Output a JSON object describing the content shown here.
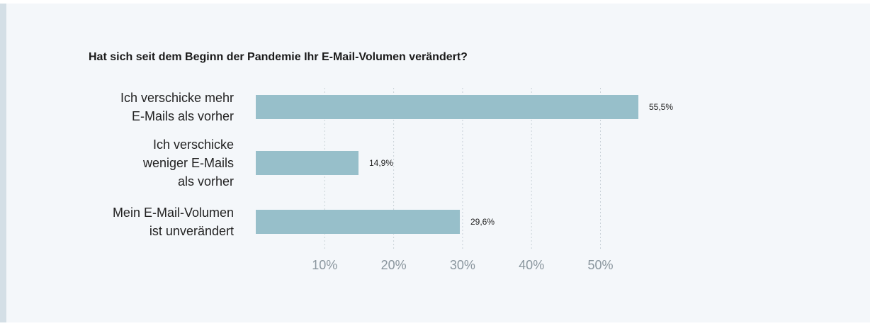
{
  "chart_data": {
    "type": "bar",
    "orientation": "horizontal",
    "title": "Hat sich seit dem Beginn der Pandemie Ihr E-Mail-Volumen verändert?",
    "categories": [
      [
        "Ich verschicke mehr",
        "E-Mails als vorher"
      ],
      [
        "Ich verschicke",
        "weniger E-Mails",
        "als vorher"
      ],
      [
        "Mein E-Mail-Volumen",
        "ist unverändert"
      ]
    ],
    "values": [
      55.5,
      14.9,
      29.6
    ],
    "value_labels": [
      "55,5%",
      "14,9%",
      "29,6%"
    ],
    "xlim": [
      0,
      60
    ],
    "ticks": [
      10,
      20,
      30,
      40,
      50
    ],
    "tick_labels": [
      "10%",
      "20%",
      "30%",
      "40%",
      "50%"
    ],
    "grid": true,
    "bar_color": "#97bfca"
  }
}
